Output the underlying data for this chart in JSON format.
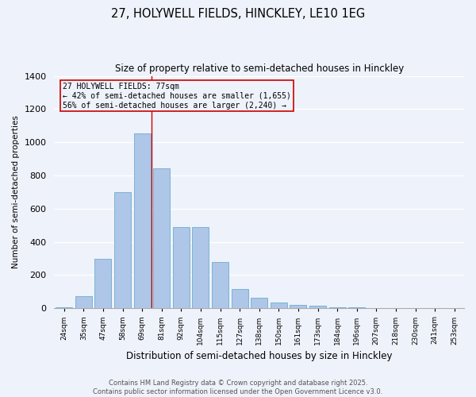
{
  "title_line1": "27, HOLYWELL FIELDS, HINCKLEY, LE10 1EG",
  "title_line2": "Size of property relative to semi-detached houses in Hinckley",
  "xlabel": "Distribution of semi-detached houses by size in Hinckley",
  "ylabel": "Number of semi-detached properties",
  "categories": [
    "24sqm",
    "35sqm",
    "47sqm",
    "58sqm",
    "69sqm",
    "81sqm",
    "92sqm",
    "104sqm",
    "115sqm",
    "127sqm",
    "138sqm",
    "150sqm",
    "161sqm",
    "173sqm",
    "184sqm",
    "196sqm",
    "207sqm",
    "218sqm",
    "230sqm",
    "241sqm",
    "253sqm"
  ],
  "values": [
    5,
    75,
    300,
    700,
    1055,
    845,
    490,
    490,
    280,
    115,
    65,
    35,
    20,
    15,
    8,
    5,
    3,
    2,
    1,
    0,
    0
  ],
  "bar_color": "#aec6e8",
  "bar_edgecolor": "#7ab3d4",
  "vline_color": "#cc0000",
  "annotation_box_edgecolor": "#cc0000",
  "annotation_title": "27 HOLYWELL FIELDS: 77sqm",
  "annotation_line2": "← 42% of semi-detached houses are smaller (1,655)",
  "annotation_line3": "56% of semi-detached houses are larger (2,240) →",
  "ylim": [
    0,
    1400
  ],
  "yticks": [
    0,
    200,
    400,
    600,
    800,
    1000,
    1200,
    1400
  ],
  "bg_color": "#eef2fa",
  "grid_color": "#ffffff",
  "footer_line1": "Contains HM Land Registry data © Crown copyright and database right 2025.",
  "footer_line2": "Contains public sector information licensed under the Open Government Licence v3.0."
}
